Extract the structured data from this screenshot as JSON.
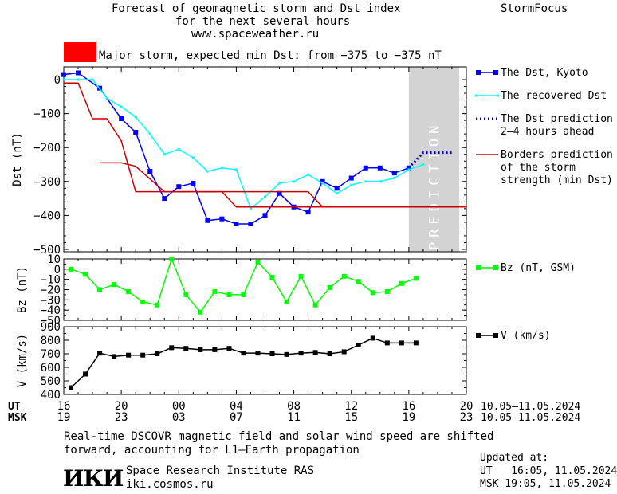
{
  "header": {
    "title_line1": "Forecast of geomagnetic storm and Dst index",
    "title_line2": "for the next several hours",
    "site": "www.spaceweather.ru",
    "brand": "StormFocus",
    "storm_label": "Major storm, expected min Dst: from −375 to −375 nT",
    "storm_color": "#ff0000"
  },
  "chart_data": [
    {
      "type": "line",
      "panel": "dst",
      "ylabel": "Dst (nT)",
      "ylim": [
        -500,
        25
      ],
      "yticks": [
        0,
        -100,
        -200,
        -300,
        -400,
        -500
      ],
      "ytick_labels": [
        "0",
        "−100",
        "−200",
        "−300",
        "−400",
        "−500"
      ],
      "xlim_hours_ut": [
        16,
        44
      ],
      "prediction_band_hours_ut": [
        40,
        43.5
      ],
      "prediction_text": "PREDICTION",
      "series": [
        {
          "name": "The Dst, Kyoto",
          "color": "#0000ff",
          "marker": "square",
          "x": [
            16,
            17,
            18.5,
            20,
            21,
            22,
            23,
            24,
            25,
            26,
            27,
            28,
            29,
            30,
            31,
            32,
            33,
            34,
            35,
            36,
            37,
            38,
            39,
            40
          ],
          "y": [
            15,
            20,
            -25,
            -115,
            -155,
            -270,
            -350,
            -315,
            -305,
            -415,
            -410,
            -425,
            -425,
            -400,
            -335,
            -375,
            -390,
            -300,
            -320,
            -290,
            -260,
            -260,
            -275,
            -260
          ]
        },
        {
          "name": "The recovered Dst",
          "color": "#00ffff",
          "marker": "dot",
          "x": [
            16,
            17,
            18,
            19,
            20,
            21,
            22,
            23,
            24,
            25,
            26,
            27,
            28,
            29,
            30,
            31,
            32,
            33,
            34,
            35,
            36,
            37,
            38,
            39,
            40,
            41
          ],
          "y": [
            0,
            0,
            0,
            -55,
            -80,
            -110,
            -160,
            -220,
            -205,
            -230,
            -270,
            -260,
            -265,
            -380,
            -345,
            -305,
            -300,
            -280,
            -305,
            -335,
            -310,
            -300,
            -300,
            -290,
            -265,
            -250
          ]
        },
        {
          "name": "The Dst prediction\n2–4 hours ahead",
          "color": "#0000cc",
          "style": "dotted",
          "x": [
            40,
            41,
            43
          ],
          "y": [
            -260,
            -215,
            -215
          ]
        },
        {
          "name": "Borders prediction\nof the storm\nstrength (min Dst)",
          "color": "#cc0000",
          "segments": [
            {
              "x": [
                16,
                17,
                18,
                19,
                20,
                21,
                22,
                28,
                33,
                34,
                44
              ],
              "y": [
                -10,
                -10,
                -115,
                -115,
                -180,
                -330,
                -330,
                -330,
                -330,
                -375,
                -375
              ]
            },
            {
              "x": [
                18.5,
                20,
                21,
                23,
                27,
                28,
                29,
                44
              ],
              "y": [
                -245,
                -245,
                -255,
                -330,
                -330,
                -375,
                -375,
                -375
              ]
            }
          ]
        }
      ]
    },
    {
      "type": "line",
      "panel": "bz",
      "ylabel": "Bz (nT)",
      "ylim": [
        -50,
        10
      ],
      "yticks": [
        10,
        0,
        -10,
        -20,
        -30,
        -40,
        -50
      ],
      "ytick_labels": [
        "10",
        "0",
        "−10",
        "−20",
        "−30",
        "−40",
        "−50"
      ],
      "series": [
        {
          "name": "Bz (nT, GSM)",
          "color": "#00ff00",
          "marker": "square",
          "x": [
            16.5,
            17.5,
            18.5,
            19.5,
            20.5,
            21.5,
            22.5,
            23.5,
            24.5,
            25.5,
            26.5,
            27.5,
            28.5,
            29.5,
            30.5,
            31.5,
            32.5,
            33.5,
            34.5,
            35.5,
            36.5,
            37.5,
            38.5,
            39.5,
            40.5
          ],
          "y": [
            0,
            -5,
            -20,
            -15,
            -22,
            -32,
            -35,
            10,
            -25,
            -42,
            -22,
            -25,
            -25,
            7,
            -8,
            -32,
            -7,
            -35,
            -18,
            -7,
            -12,
            -23,
            -22,
            -14,
            -9
          ]
        }
      ]
    },
    {
      "type": "line",
      "panel": "v",
      "ylabel": "V (km/s)",
      "ylim": [
        400,
        900
      ],
      "yticks": [
        900,
        800,
        700,
        600,
        500,
        400
      ],
      "ytick_labels": [
        "900",
        "800",
        "700",
        "600",
        "500",
        "400"
      ],
      "series": [
        {
          "name": "V (km/s)",
          "color": "#000000",
          "marker": "square",
          "x": [
            16.5,
            17.5,
            18.5,
            19.5,
            20.5,
            21.5,
            22.5,
            23.5,
            24.5,
            25.5,
            26.5,
            27.5,
            28.5,
            29.5,
            30.5,
            31.5,
            32.5,
            33.5,
            34.5,
            35.5,
            36.5,
            37.5,
            38.5,
            39.5,
            40.5
          ],
          "y": [
            450,
            550,
            705,
            680,
            690,
            690,
            700,
            745,
            740,
            730,
            730,
            740,
            705,
            705,
            700,
            695,
            705,
            710,
            700,
            715,
            765,
            815,
            780,
            780,
            780
          ]
        }
      ]
    }
  ],
  "xaxis": {
    "ut_label": "UT",
    "msk_label": "MSK",
    "ut_ticks": [
      "16",
      "20",
      "00",
      "04",
      "08",
      "12",
      "16",
      "20"
    ],
    "msk_ticks": [
      "19",
      "23",
      "03",
      "07",
      "11",
      "15",
      "19",
      "23"
    ],
    "date_range_ut": "10.05–11.05.2024",
    "date_range_msk": "10.05–11.05.2024"
  },
  "footer": {
    "note_line1": "Real-time DSCOVR magnetic field and solar wind speed are shifted",
    "note_line2": "forward, accounting for L1–Earth propagation",
    "org_logo": "ИКИ",
    "org_name": "Space Research Institute RAS",
    "org_site": "iki.cosmos.ru",
    "updated_label": "Updated at:",
    "updated_ut": "UT   16:05, 11.05.2024",
    "updated_msk": "MSK 19:05, 11.05.2024"
  }
}
